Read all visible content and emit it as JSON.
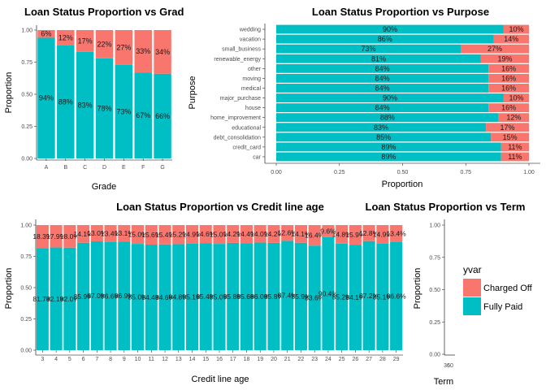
{
  "colors": {
    "charged_off": "#F8766D",
    "fully_paid": "#00BFC4"
  },
  "legend": {
    "title": "yvar",
    "entries": [
      "Charged Off",
      "Fully Paid"
    ]
  },
  "chart_data": [
    {
      "type": "bar",
      "id": "grade",
      "title": "Loan Status Proportion vs Grade",
      "xlabel": "Grade",
      "ylabel": "Proportion",
      "ylim": [
        0,
        1
      ],
      "yticks": [
        "0.00",
        "0.25",
        "0.50",
        "0.75",
        "1.00"
      ],
      "stacked": true,
      "categories": [
        "A",
        "B",
        "C",
        "D",
        "E",
        "F",
        "G"
      ],
      "series": [
        {
          "name": "Charged Off",
          "values": [
            0.06,
            0.12,
            0.17,
            0.22,
            0.27,
            0.33,
            0.34
          ],
          "labels": [
            "6%",
            "12%",
            "17%",
            "22%",
            "27%",
            "33%",
            "34%"
          ]
        },
        {
          "name": "Fully Paid",
          "values": [
            0.94,
            0.88,
            0.83,
            0.78,
            0.73,
            0.67,
            0.66
          ],
          "labels": [
            "94%",
            "88%",
            "83%",
            "78%",
            "73%",
            "67%",
            "66%"
          ]
        }
      ]
    },
    {
      "type": "bar",
      "id": "purpose",
      "orientation": "horizontal",
      "title": "Loan Status Proportion vs Purpose",
      "xlabel": "Proportion",
      "ylabel": "Purpose",
      "xlim": [
        0,
        1
      ],
      "xticks": [
        "0.00",
        "0.25",
        "0.50",
        "0.75",
        "1.00"
      ],
      "stacked": true,
      "categories": [
        "wedding",
        "vacation",
        "small_business",
        "renewable_energy",
        "other",
        "moving",
        "medical",
        "major_purchase",
        "house",
        "home_improvement",
        "educational",
        "debt_consolidation",
        "credit_card",
        "car"
      ],
      "series": [
        {
          "name": "Fully Paid",
          "values": [
            0.9,
            0.86,
            0.73,
            0.81,
            0.84,
            0.84,
            0.84,
            0.9,
            0.84,
            0.88,
            0.83,
            0.85,
            0.89,
            0.89
          ],
          "labels": [
            "90%",
            "86%",
            "73%",
            "81%",
            "84%",
            "84%",
            "84%",
            "90%",
            "84%",
            "88%",
            "83%",
            "85%",
            "89%",
            "89%"
          ]
        },
        {
          "name": "Charged Off",
          "values": [
            0.1,
            0.14,
            0.27,
            0.19,
            0.16,
            0.16,
            0.16,
            0.1,
            0.16,
            0.12,
            0.17,
            0.15,
            0.11,
            0.11
          ],
          "labels": [
            "10%",
            "14%",
            "27%",
            "19%",
            "16%",
            "16%",
            "16%",
            "10%",
            "16%",
            "12%",
            "17%",
            "15%",
            "11%",
            "11%"
          ]
        }
      ]
    },
    {
      "type": "bar",
      "id": "credit_line_age",
      "title": "Loan Status Proportion vs Credit line age",
      "xlabel": "Credit line age",
      "ylabel": "Proportion",
      "ylim": [
        0,
        1
      ],
      "yticks": [
        "0.00",
        "0.25",
        "0.50",
        "0.75",
        "1.00"
      ],
      "stacked": true,
      "categories": [
        "3",
        "4",
        "5",
        "6",
        "7",
        "8",
        "9",
        "10",
        "11",
        "12",
        "13",
        "14",
        "15",
        "16",
        "17",
        "18",
        "19",
        "20",
        "21",
        "22",
        "23",
        "24",
        "25",
        "26",
        "27",
        "28",
        "29"
      ],
      "series": [
        {
          "name": "Charged Off",
          "values": [
            0.183,
            0.179,
            0.18,
            0.141,
            0.13,
            0.134,
            0.131,
            0.15,
            0.156,
            0.154,
            0.152,
            0.149,
            0.146,
            0.15,
            0.142,
            0.144,
            0.14,
            0.142,
            0.126,
            0.141,
            0.164,
            0.096,
            0.148,
            0.159,
            0.128,
            0.149,
            0.134
          ],
          "labels": [
            "18.3%",
            "17.9%",
            "18.0%",
            "14.1%",
            "13.0%",
            "13.4%",
            "13.1%",
            "15.0%",
            "15.6%",
            "15.4%",
            "15.2%",
            "14.9%",
            "14.6%",
            "15.0%",
            "14.2%",
            "14.4%",
            "14.0%",
            "14.2%",
            "12.6%",
            "14.1%",
            "16.4%",
            "9.6%",
            "14.8%",
            "15.9%",
            "12.8%",
            "14.9%",
            "13.4%"
          ]
        },
        {
          "name": "Fully Paid",
          "values": [
            0.817,
            0.821,
            0.82,
            0.859,
            0.87,
            0.866,
            0.869,
            0.85,
            0.844,
            0.846,
            0.848,
            0.851,
            0.854,
            0.85,
            0.858,
            0.856,
            0.86,
            0.858,
            0.874,
            0.859,
            0.836,
            0.904,
            0.852,
            0.841,
            0.872,
            0.851,
            0.866
          ],
          "labels": [
            "81.7%",
            "82.1%",
            "82.0%",
            "85.9%",
            "87.0%",
            "86.6%",
            "86.9%",
            "85.0%",
            "84.4%",
            "84.6%",
            "84.8%",
            "85.1%",
            "85.4%",
            "85.0%",
            "85.8%",
            "85.6%",
            "86.0%",
            "85.8%",
            "87.4%",
            "85.9%",
            "83.6%",
            "90.4%",
            "85.2%",
            "84.1%",
            "87.2%",
            "85.1%",
            "86.6%"
          ]
        }
      ]
    },
    {
      "type": "bar",
      "id": "term",
      "title": "Loan Status Proportion vs Term",
      "xlabel": "Term",
      "ylabel": "Proportion",
      "ylim": [
        0,
        1
      ],
      "yticks": [
        "0.00",
        "0.25",
        "0.50",
        "0.75",
        "1.00"
      ],
      "xticks": [
        "36",
        "60"
      ],
      "stacked": true,
      "categories": [],
      "series": []
    }
  ]
}
